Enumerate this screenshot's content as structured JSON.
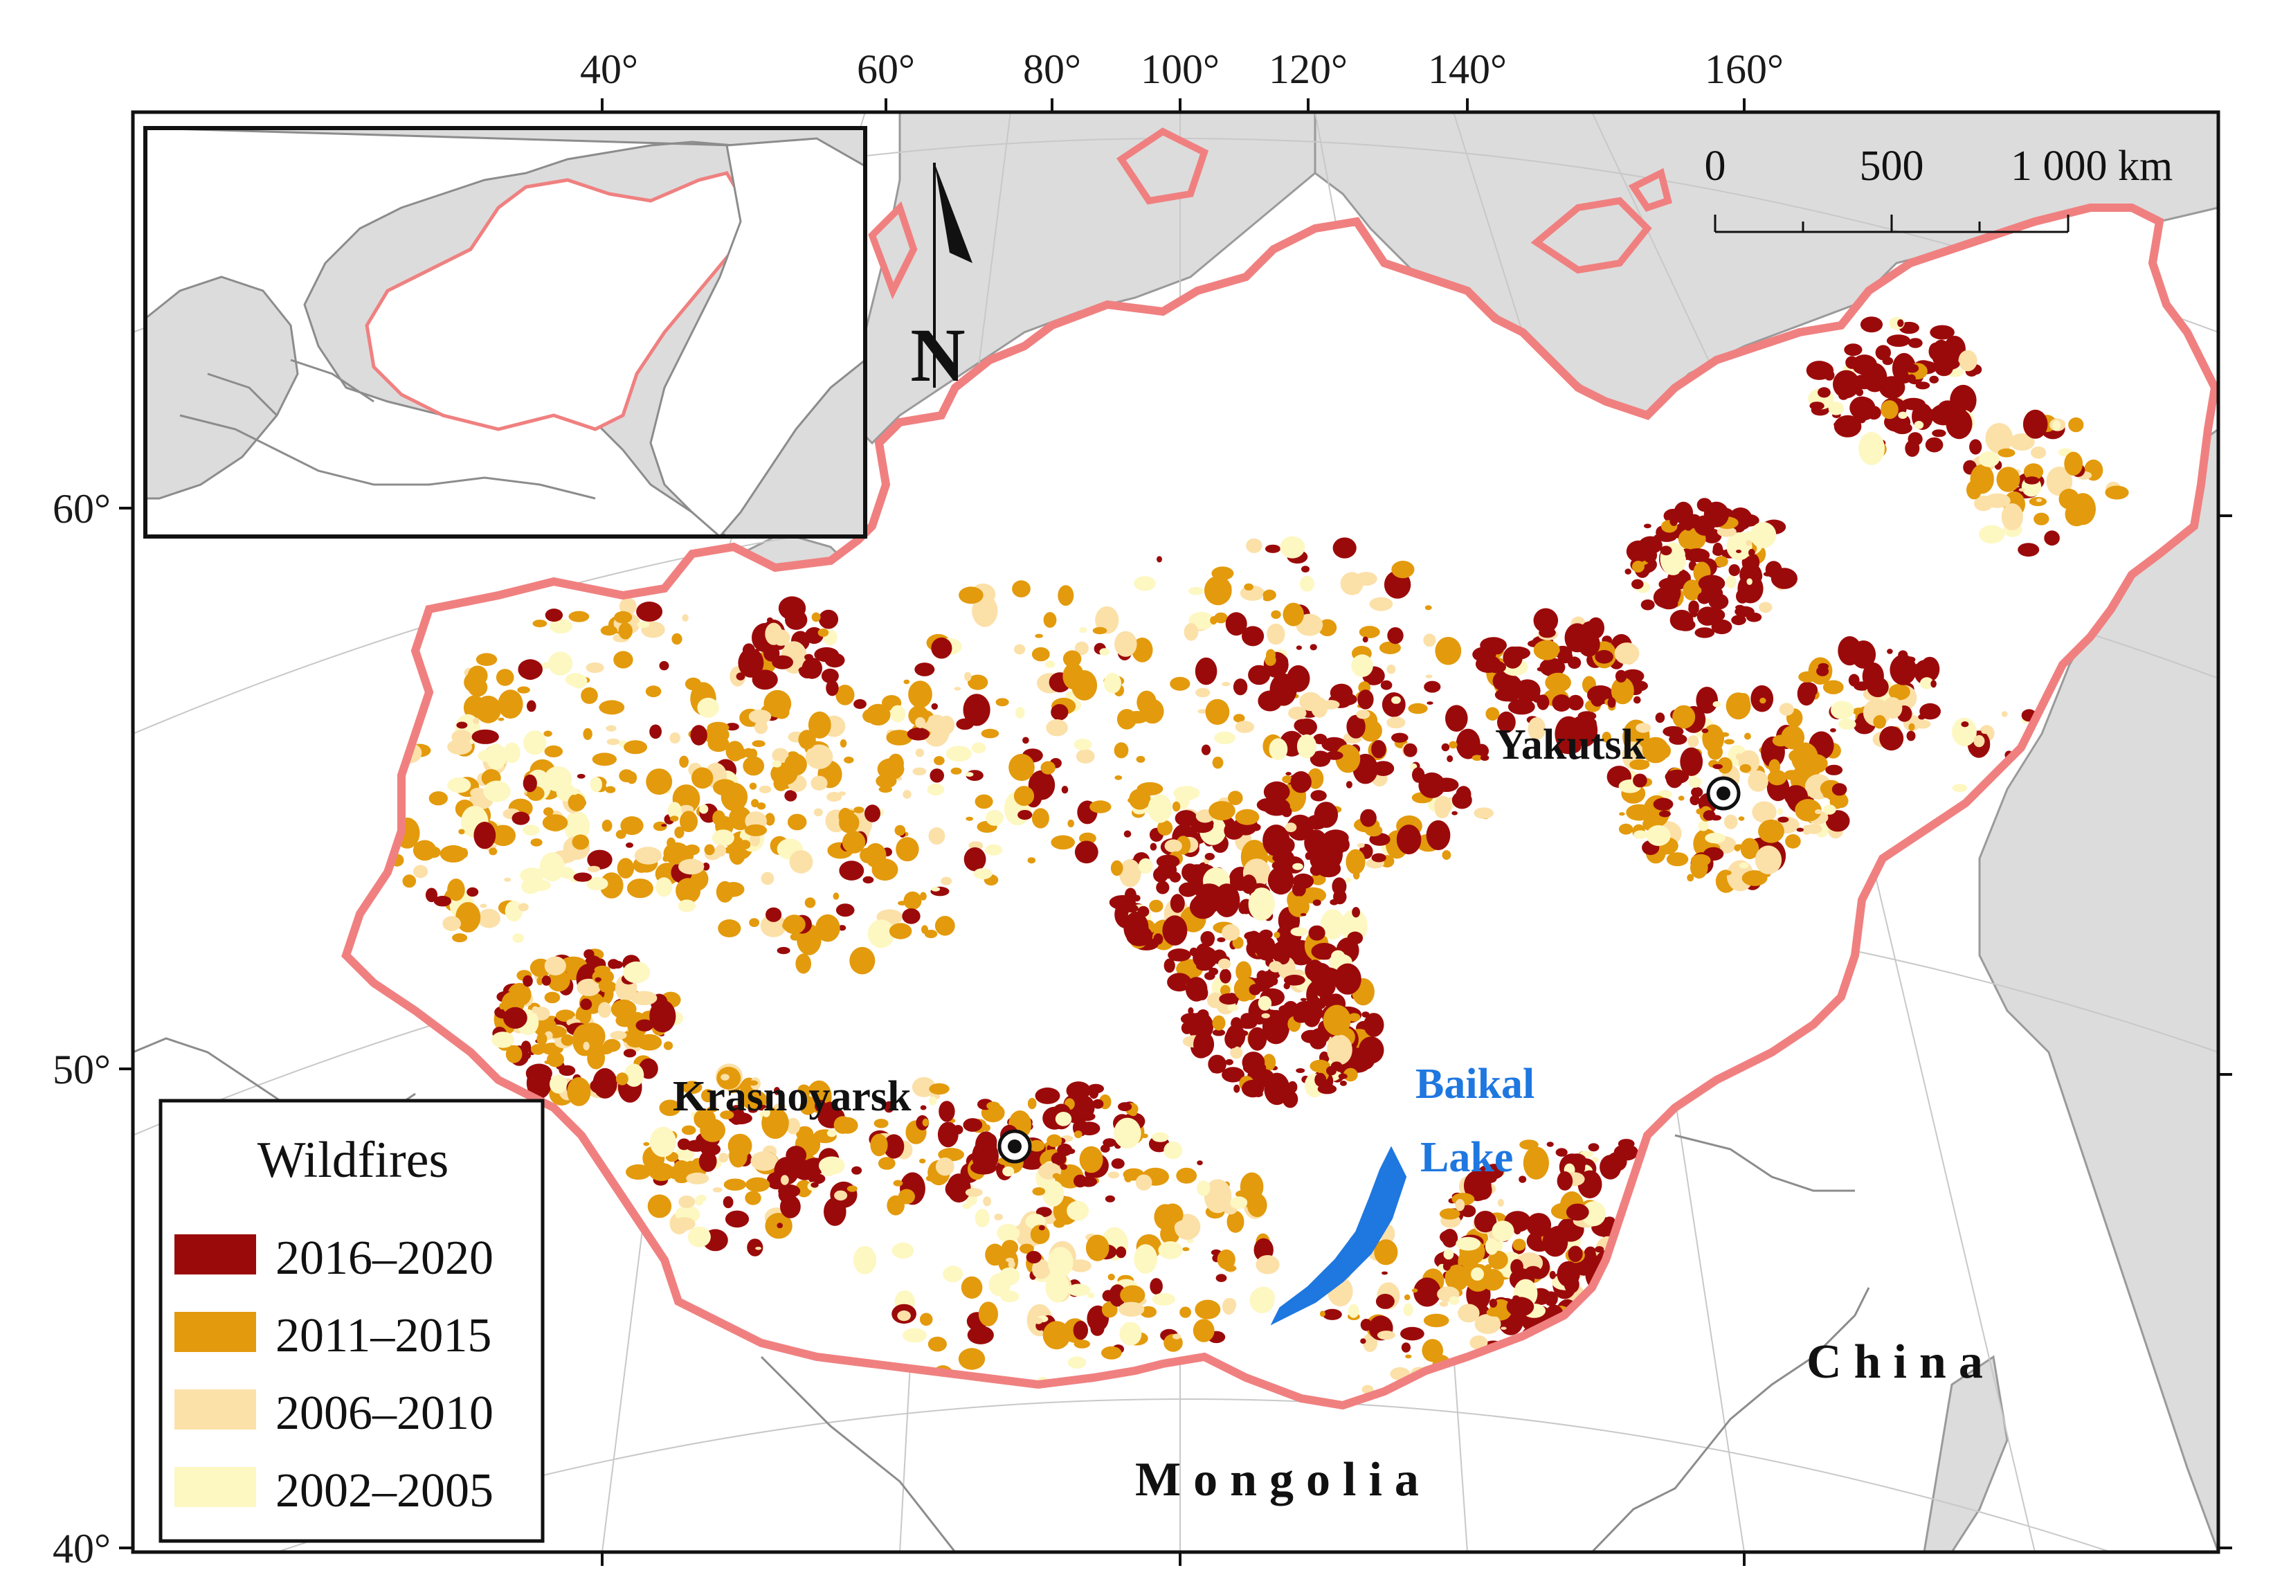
{
  "map": {
    "longitude_labels": [
      "40°",
      "60°",
      "80°",
      "100°",
      "120°",
      "140°",
      "160°"
    ],
    "latitude_labels": [
      "60°",
      "50°",
      "40°"
    ],
    "north_arrow": {
      "letter": "N",
      "icon": "north-arrow-icon"
    },
    "scale_bar": {
      "labels": [
        "0",
        "500",
        "1 000 km"
      ]
    },
    "cities": [
      {
        "name": "Yakutsk",
        "marker_icon": "city-dot-icon"
      },
      {
        "name": "Krasnoyarsk",
        "marker_icon": "city-dot-icon"
      }
    ],
    "lake": {
      "line1": "Baikal",
      "line2": "Lake",
      "color": "#1f77e0"
    },
    "countries": [
      "Mongolia",
      "China"
    ],
    "region_border_color": "#f08080",
    "land_color": "#dcdcdc"
  },
  "legend": {
    "title": "Wildfires",
    "items": [
      {
        "label": "2016–2020",
        "color": "#9b0a0a"
      },
      {
        "label": "2011–2015",
        "color": "#e39a0c"
      },
      {
        "label": "2006–2010",
        "color": "#fbe0a8"
      },
      {
        "label": "2002–2005",
        "color": "#fdf7c2"
      }
    ]
  }
}
